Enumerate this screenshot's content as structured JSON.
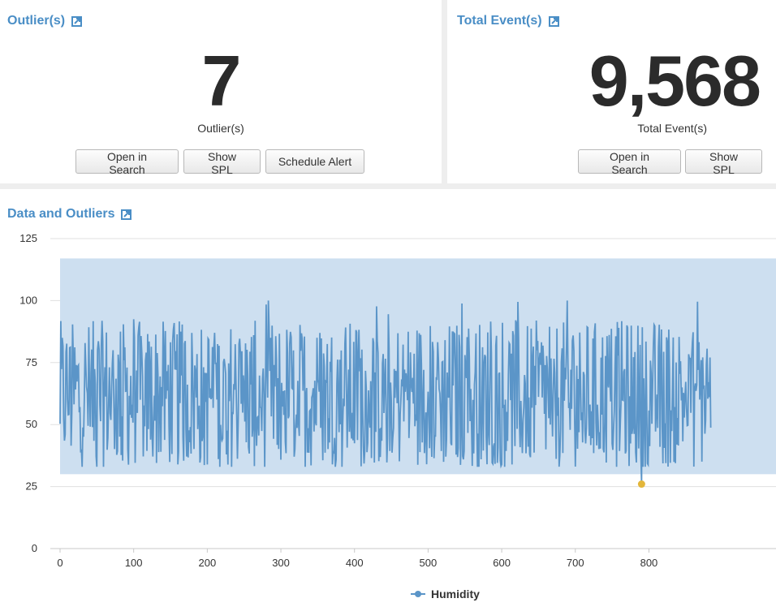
{
  "outliers_panel": {
    "title": "Outlier(s)",
    "value": "7",
    "caption": "Outlier(s)",
    "buttons": {
      "open_in_search": "Open in Search",
      "show_spl": "Show SPL",
      "schedule_alert": "Schedule Alert"
    }
  },
  "events_panel": {
    "title": "Total Event(s)",
    "value": "9,568",
    "caption": "Total Event(s)",
    "buttons": {
      "open_in_search": "Open in Search",
      "show_spl": "Show SPL"
    }
  },
  "chart_panel": {
    "title": "Data and Outliers"
  },
  "colors": {
    "title": "#4a8ec6",
    "line": "#5b95c8",
    "band": "#cddff0",
    "outlier": "#e3b63a"
  },
  "chart_data": {
    "type": "line",
    "xlabel": "",
    "ylabel": "",
    "xlim": [
      0,
      885
    ],
    "ylim": [
      0,
      125
    ],
    "x_ticks": [
      0,
      100,
      200,
      300,
      400,
      500,
      600,
      700,
      800
    ],
    "y_ticks": [
      0,
      25,
      50,
      75,
      100,
      125
    ],
    "band": {
      "lower": 30,
      "upper": 117
    },
    "series": [
      {
        "name": "Humidity",
        "n_points": 885,
        "y_range": [
          27,
          100
        ]
      }
    ],
    "outliers": [
      {
        "x": 790,
        "y": 26
      }
    ],
    "legend": "bottom-center",
    "grid": true
  }
}
